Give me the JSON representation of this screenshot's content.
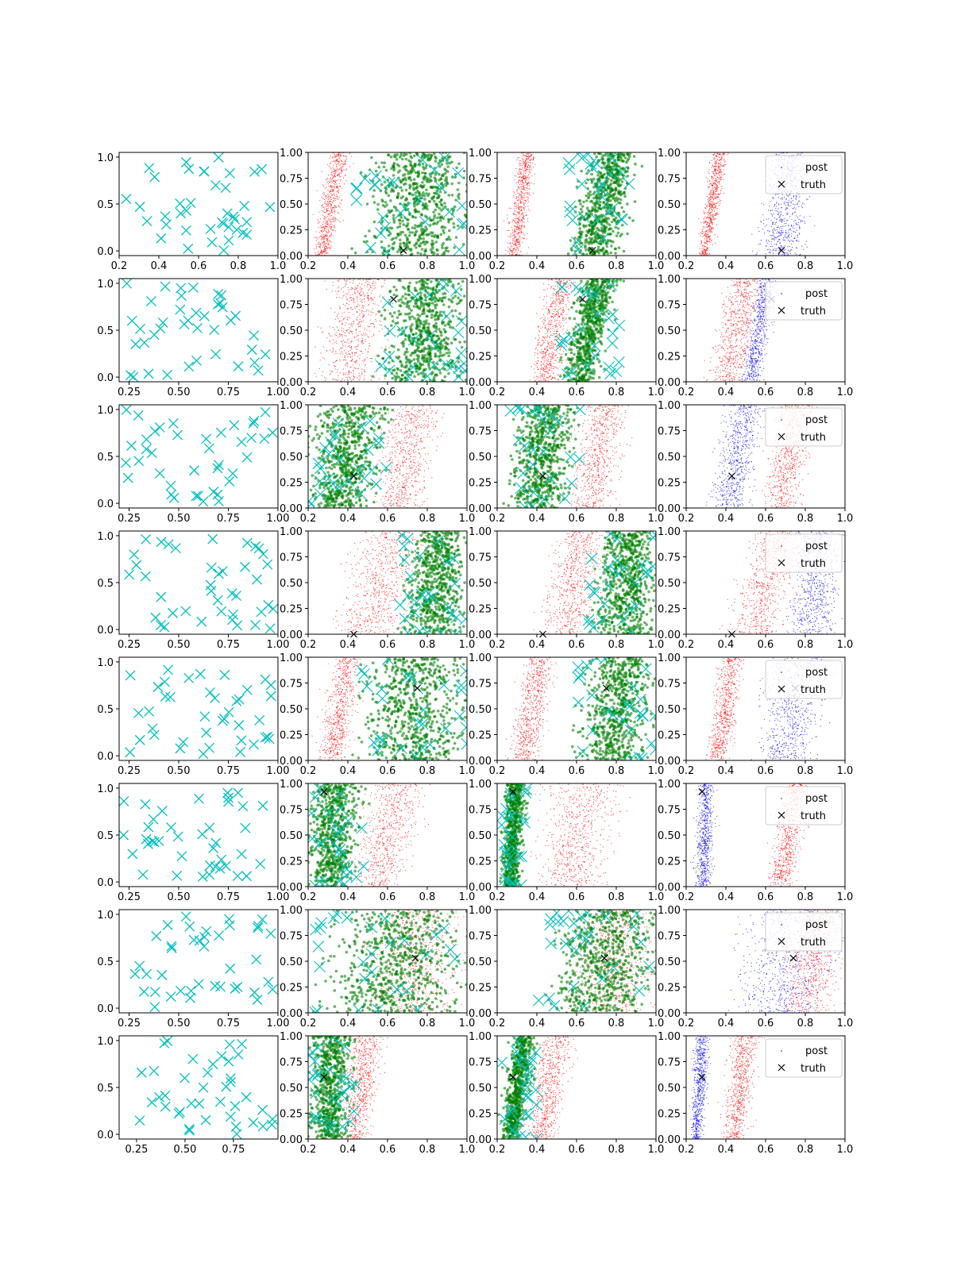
{
  "figure": {
    "rows": 8,
    "cols": 4,
    "colors": {
      "xmarks": "#00bfbf",
      "post_red": "#ff0000",
      "post_green": "#008000",
      "post_blue": "#0000ff",
      "truth": "#000000",
      "axes": "#000000"
    },
    "legend": {
      "post": "post",
      "truth": "truth",
      "placement": "upper right"
    },
    "default_ticks": {
      "x": [
        0.2,
        0.4,
        0.6,
        0.8,
        1.0
      ],
      "x_labels": [
        "0.2",
        "0.4",
        "0.6",
        "0.8",
        "1.0"
      ],
      "y": [
        0.0,
        0.25,
        0.5,
        0.75,
        1.0
      ],
      "y_labels": [
        "0.00",
        "0.25",
        "0.50",
        "0.75",
        "1.00"
      ],
      "y_labels_first_col": [
        "0.0",
        "0.5",
        "1.0"
      ],
      "y_first_col": [
        0.0,
        0.5,
        1.0
      ]
    }
  },
  "chart_data": [
    {
      "row": 1,
      "type": "scatter",
      "panels": [
        {
          "kind": "design",
          "xlim": [
            0.2,
            1.0
          ],
          "ylim": [
            -0.05,
            1.05
          ]
        },
        {
          "kind": "posterior",
          "xlim": [
            0.2,
            1.0
          ],
          "ylim": [
            0,
            1
          ],
          "red_band": {
            "x_at_y0": [
              0.22,
              0.32
            ],
            "x_at_y1": [
              0.3,
              0.42
            ]
          },
          "green_band": {
            "x_at_y0": [
              0.44,
              1.0
            ],
            "x_at_y1": [
              0.52,
              1.0
            ]
          },
          "truth": [
            0.68,
            0.05
          ]
        },
        {
          "kind": "posterior",
          "xlim": [
            0.2,
            1.0
          ],
          "ylim": [
            0,
            1
          ],
          "red_band": {
            "x_at_y0": [
              0.24,
              0.33
            ],
            "x_at_y1": [
              0.31,
              0.4
            ]
          },
          "green_band": {
            "x_at_y0": [
              0.55,
              0.82
            ],
            "x_at_y1": [
              0.66,
              0.91
            ]
          },
          "truth": [
            0.68,
            0.05
          ]
        },
        {
          "kind": "compare",
          "xlim": [
            0.2,
            1.0
          ],
          "ylim": [
            0,
            1
          ],
          "red_band": {
            "x_at_y0": [
              0.26,
              0.32
            ],
            "x_at_y1": [
              0.32,
              0.42
            ]
          },
          "blue_band": {
            "x_at_y0": [
              0.55,
              0.82
            ],
            "x_at_y1": [
              0.62,
              0.83
            ]
          },
          "truth": [
            0.68,
            0.05
          ]
        }
      ]
    },
    {
      "row": 2,
      "type": "scatter",
      "panels": [
        {
          "kind": "design",
          "xlim": [
            0.2,
            1.0
          ],
          "ylim": [
            -0.05,
            1.05
          ],
          "x_ticks": [
            0.25,
            0.5,
            0.75,
            1.0
          ],
          "x_labels": [
            "0.25",
            "0.50",
            "0.75",
            "1.00"
          ]
        },
        {
          "kind": "posterior",
          "xlim": [
            0.2,
            1.0
          ],
          "ylim": [
            0,
            1
          ],
          "red_band": {
            "x_at_y0": [
              0.24,
              0.55
            ],
            "x_at_y1": [
              0.32,
              0.62
            ]
          },
          "green_band": {
            "x_at_y0": [
              0.55,
              1.0
            ],
            "x_at_y1": [
              0.62,
              1.0
            ]
          },
          "truth": [
            0.63,
            0.8
          ]
        },
        {
          "kind": "posterior",
          "xlim": [
            0.2,
            1.0
          ],
          "ylim": [
            0,
            1
          ],
          "red_band": {
            "x_at_y0": [
              0.36,
              0.52
            ],
            "x_at_y1": [
              0.44,
              0.6
            ]
          },
          "green_band": {
            "x_at_y0": [
              0.52,
              0.7
            ],
            "x_at_y1": [
              0.62,
              0.82
            ]
          },
          "truth": [
            0.63,
            0.8
          ]
        },
        {
          "kind": "compare",
          "xlim": [
            0.2,
            1.0
          ],
          "ylim": [
            0,
            1
          ],
          "red_band": {
            "x_at_y0": [
              0.3,
              0.52
            ],
            "x_at_y1": [
              0.4,
              0.6
            ]
          },
          "blue_band": {
            "x_at_y0": [
              0.48,
              0.58
            ],
            "x_at_y1": [
              0.55,
              0.66
            ]
          },
          "truth": [
            0.63,
            0.8
          ]
        }
      ]
    },
    {
      "row": 3,
      "type": "scatter",
      "panels": [
        {
          "kind": "design",
          "xlim": [
            0.2,
            1.0
          ],
          "ylim": [
            -0.05,
            1.05
          ],
          "x_ticks": [
            0.25,
            0.5,
            0.75,
            1.0
          ],
          "x_labels": [
            "0.25",
            "0.50",
            "0.75",
            "1.00"
          ]
        },
        {
          "kind": "posterior",
          "xlim": [
            0.2,
            1.0
          ],
          "ylim": [
            0,
            1
          ],
          "red_band": {
            "x_at_y0": [
              0.52,
              0.8
            ],
            "x_at_y1": [
              0.58,
              0.88
            ]
          },
          "green_band": {
            "x_at_y0": [
              0.2,
              0.52
            ],
            "x_at_y1": [
              0.22,
              0.61
            ]
          },
          "truth": [
            0.43,
            0.31
          ]
        },
        {
          "kind": "posterior",
          "xlim": [
            0.2,
            1.0
          ],
          "ylim": [
            0,
            1
          ],
          "red_band": {
            "x_at_y0": [
              0.55,
              0.78
            ],
            "x_at_y1": [
              0.62,
              0.88
            ]
          },
          "green_band": {
            "x_at_y0": [
              0.25,
              0.54
            ],
            "x_at_y1": [
              0.3,
              0.63
            ]
          },
          "truth": [
            0.43,
            0.31
          ]
        },
        {
          "kind": "compare",
          "xlim": [
            0.2,
            1.0
          ],
          "ylim": [
            0,
            1
          ],
          "red_band": {
            "x_at_y0": [
              0.58,
              0.76
            ],
            "x_at_y1": [
              0.66,
              0.86
            ]
          },
          "blue_band": {
            "x_at_y0": [
              0.3,
              0.52
            ],
            "x_at_y1": [
              0.4,
              0.6
            ]
          },
          "truth": [
            0.43,
            0.31
          ]
        }
      ]
    },
    {
      "row": 4,
      "type": "scatter",
      "panels": [
        {
          "kind": "design",
          "xlim": [
            0.2,
            1.0
          ],
          "ylim": [
            -0.05,
            1.05
          ],
          "x_ticks": [
            0.25,
            0.5,
            0.75,
            1.0
          ],
          "x_labels": [
            "0.25",
            "0.50",
            "0.75",
            "1.00"
          ]
        },
        {
          "kind": "posterior",
          "xlim": [
            0.2,
            1.0
          ],
          "ylim": [
            0,
            1
          ],
          "red_band": {
            "x_at_y0": [
              0.3,
              0.7
            ],
            "x_at_y1": [
              0.45,
              0.8
            ]
          },
          "green_band": {
            "x_at_y0": [
              0.66,
              1.0
            ],
            "x_at_y1": [
              0.72,
              1.0
            ]
          },
          "truth": [
            0.43,
            0.0
          ]
        },
        {
          "kind": "posterior",
          "xlim": [
            0.2,
            1.0
          ],
          "ylim": [
            0,
            1
          ],
          "red_band": {
            "x_at_y0": [
              0.4,
              0.68
            ],
            "x_at_y1": [
              0.5,
              0.78
            ]
          },
          "green_band": {
            "x_at_y0": [
              0.66,
              1.0
            ],
            "x_at_y1": [
              0.74,
              1.0
            ]
          },
          "truth": [
            0.43,
            0.0
          ]
        },
        {
          "kind": "compare",
          "xlim": [
            0.2,
            1.0
          ],
          "ylim": [
            0,
            1
          ],
          "red_band": {
            "x_at_y0": [
              0.38,
              0.7
            ],
            "x_at_y1": [
              0.55,
              0.78
            ]
          },
          "blue_band": {
            "x_at_y0": [
              0.7,
              0.95
            ],
            "x_at_y1": [
              0.74,
              1.0
            ]
          },
          "truth": [
            0.43,
            0.0
          ]
        }
      ]
    },
    {
      "row": 5,
      "type": "scatter",
      "panels": [
        {
          "kind": "design",
          "xlim": [
            0.2,
            1.0
          ],
          "ylim": [
            -0.05,
            1.05
          ],
          "x_ticks": [
            0.25,
            0.5,
            0.75,
            1.0
          ],
          "x_labels": [
            "0.25",
            "0.50",
            "0.75",
            "1.00"
          ]
        },
        {
          "kind": "posterior",
          "xlim": [
            0.2,
            1.0
          ],
          "ylim": [
            0,
            1
          ],
          "red_band": {
            "x_at_y0": [
              0.24,
              0.4
            ],
            "x_at_y1": [
              0.32,
              0.48
            ]
          },
          "green_band": {
            "x_at_y0": [
              0.44,
              1.0
            ],
            "x_at_y1": [
              0.5,
              1.0
            ]
          },
          "truth": [
            0.75,
            0.7
          ]
        },
        {
          "kind": "posterior",
          "xlim": [
            0.2,
            1.0
          ],
          "ylim": [
            0,
            1
          ],
          "red_band": {
            "x_at_y0": [
              0.25,
              0.42
            ],
            "x_at_y1": [
              0.34,
              0.5
            ]
          },
          "green_band": {
            "x_at_y0": [
              0.6,
              0.95
            ],
            "x_at_y1": [
              0.66,
              1.0
            ]
          },
          "truth": [
            0.75,
            0.7
          ]
        },
        {
          "kind": "compare",
          "xlim": [
            0.2,
            1.0
          ],
          "ylim": [
            0,
            1
          ],
          "red_band": {
            "x_at_y0": [
              0.3,
              0.42
            ],
            "x_at_y1": [
              0.36,
              0.5
            ]
          },
          "blue_band": {
            "x_at_y0": [
              0.55,
              0.85
            ],
            "x_at_y1": [
              0.6,
              0.95
            ]
          },
          "truth": [
            0.75,
            0.7
          ]
        }
      ]
    },
    {
      "row": 6,
      "type": "scatter",
      "panels": [
        {
          "kind": "design",
          "xlim": [
            0.2,
            1.0
          ],
          "ylim": [
            -0.05,
            1.05
          ],
          "x_ticks": [
            0.25,
            0.5,
            0.75,
            1.0
          ],
          "x_labels": [
            "0.25",
            "0.50",
            "0.75",
            "1.00"
          ]
        },
        {
          "kind": "posterior",
          "xlim": [
            0.2,
            1.0
          ],
          "ylim": [
            0,
            1
          ],
          "red_band": {
            "x_at_y0": [
              0.42,
              0.66
            ],
            "x_at_y1": [
              0.48,
              0.84
            ]
          },
          "green_band": {
            "x_at_y0": [
              0.2,
              0.42
            ],
            "x_at_y1": [
              0.2,
              0.49
            ]
          },
          "truth": [
            0.28,
            0.92
          ]
        },
        {
          "kind": "posterior",
          "xlim": [
            0.2,
            1.0
          ],
          "ylim": [
            0,
            1
          ],
          "red_band": {
            "x_at_y0": [
              0.4,
              0.72
            ],
            "x_at_y1": [
              0.42,
              0.86
            ]
          },
          "green_band": {
            "x_at_y0": [
              0.22,
              0.31
            ],
            "x_at_y1": [
              0.24,
              0.35
            ]
          },
          "truth": [
            0.28,
            0.92
          ]
        },
        {
          "kind": "compare",
          "xlim": [
            0.2,
            1.0
          ],
          "ylim": [
            0,
            1
          ],
          "red_band": {
            "x_at_y0": [
              0.6,
              0.75
            ],
            "x_at_y1": [
              0.68,
              0.82
            ]
          },
          "blue_band": {
            "x_at_y0": [
              0.24,
              0.33
            ],
            "x_at_y1": [
              0.26,
              0.35
            ]
          },
          "truth": [
            0.28,
            0.92
          ]
        }
      ]
    },
    {
      "row": 7,
      "type": "scatter",
      "panels": [
        {
          "kind": "design",
          "xlim": [
            0.2,
            1.0
          ],
          "ylim": [
            -0.05,
            1.05
          ],
          "x_ticks": [
            0.25,
            0.5,
            0.75,
            1.0
          ],
          "x_labels": [
            "0.25",
            "0.50",
            "0.75",
            "1.00"
          ]
        },
        {
          "kind": "posterior",
          "xlim": [
            0.2,
            1.0
          ],
          "ylim": [
            0,
            1
          ],
          "red_band": {
            "x_at_y0": [
              0.4,
              1.0
            ],
            "x_at_y1": [
              0.55,
              1.0
            ]
          },
          "green_band": {
            "x_at_y0": [
              0.22,
              1.0
            ],
            "x_at_y1": [
              0.35,
              1.0
            ]
          },
          "truth": [
            0.74,
            0.53
          ]
        },
        {
          "kind": "posterior",
          "xlim": [
            0.2,
            1.0
          ],
          "ylim": [
            0,
            1
          ],
          "red_band": {
            "x_at_y0": [
              0.52,
              1.0
            ],
            "x_at_y1": [
              0.62,
              1.0
            ]
          },
          "green_band": {
            "x_at_y0": [
              0.4,
              1.0
            ],
            "x_at_y1": [
              0.55,
              1.0
            ]
          },
          "truth": [
            0.74,
            0.53
          ]
        },
        {
          "kind": "compare",
          "xlim": [
            0.2,
            1.0
          ],
          "ylim": [
            0,
            1
          ],
          "red_band": {
            "x_at_y0": [
              0.62,
              0.98
            ],
            "x_at_y1": [
              0.78,
              1.0
            ]
          },
          "blue_band": {
            "x_at_y0": [
              0.4,
              0.9
            ],
            "x_at_y1": [
              0.5,
              1.0
            ]
          },
          "truth": [
            0.74,
            0.53
          ]
        }
      ]
    },
    {
      "row": 8,
      "type": "scatter",
      "panels": [
        {
          "kind": "design",
          "xlim": [
            0.16,
            0.98
          ],
          "ylim": [
            -0.05,
            1.05
          ],
          "x_ticks": [
            0.25,
            0.5,
            0.75
          ],
          "x_labels": [
            "0.25",
            "0.50",
            "0.75"
          ]
        },
        {
          "kind": "posterior",
          "xlim": [
            0.2,
            1.0
          ],
          "ylim": [
            0,
            1
          ],
          "red_band": {
            "x_at_y0": [
              0.36,
              0.5
            ],
            "x_at_y1": [
              0.42,
              0.6
            ]
          },
          "green_band": {
            "x_at_y0": [
              0.2,
              0.39
            ],
            "x_at_y1": [
              0.2,
              0.44
            ]
          },
          "truth": [
            0.28,
            0.6
          ]
        },
        {
          "kind": "posterior",
          "xlim": [
            0.2,
            1.0
          ],
          "ylim": [
            0,
            1
          ],
          "red_band": {
            "x_at_y0": [
              0.34,
              0.5
            ],
            "x_at_y1": [
              0.4,
              0.6
            ]
          },
          "green_band": {
            "x_at_y0": [
              0.22,
              0.32
            ],
            "x_at_y1": [
              0.27,
              0.4
            ]
          },
          "truth": [
            0.28,
            0.6
          ]
        },
        {
          "kind": "compare",
          "xlim": [
            0.2,
            1.0
          ],
          "ylim": [
            0,
            1
          ],
          "red_band": {
            "x_at_y0": [
              0.38,
              0.5
            ],
            "x_at_y1": [
              0.42,
              0.58
            ]
          },
          "blue_band": {
            "x_at_y0": [
              0.22,
              0.28
            ],
            "x_at_y1": [
              0.24,
              0.33
            ]
          },
          "truth": [
            0.28,
            0.6
          ]
        }
      ]
    }
  ]
}
